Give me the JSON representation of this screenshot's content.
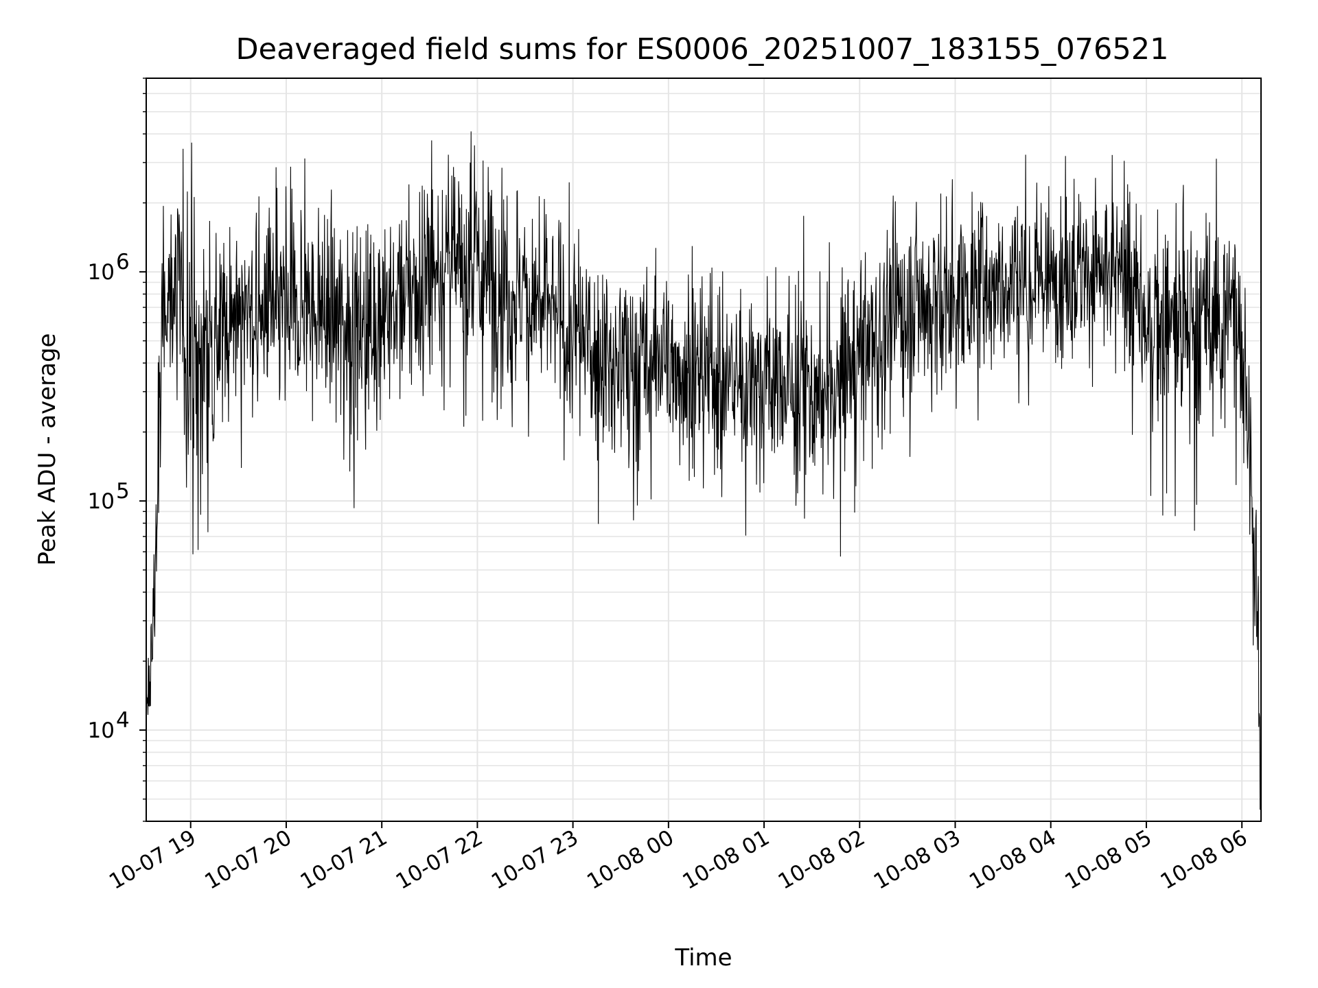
{
  "chart_data": {
    "type": "line",
    "title": "Deaveraged field sums for ES0006_20251007_183155_076521",
    "xlabel": "Time",
    "ylabel": "Peak ADU - average",
    "yscale": "log",
    "ylim": [
      4000,
      7000000
    ],
    "xlim_hours": [
      18.535,
      30.2
    ],
    "grid": true,
    "line_color": "#000000",
    "grid_color": "#e5e5e5",
    "x_ticks": [
      {
        "hour": 19,
        "label": "10-07 19"
      },
      {
        "hour": 20,
        "label": "10-07 20"
      },
      {
        "hour": 21,
        "label": "10-07 21"
      },
      {
        "hour": 22,
        "label": "10-07 22"
      },
      {
        "hour": 23,
        "label": "10-07 23"
      },
      {
        "hour": 24,
        "label": "10-08 00"
      },
      {
        "hour": 25,
        "label": "10-08 01"
      },
      {
        "hour": 26,
        "label": "10-08 02"
      },
      {
        "hour": 27,
        "label": "10-08 03"
      },
      {
        "hour": 28,
        "label": "10-08 04"
      },
      {
        "hour": 29,
        "label": "10-08 05"
      },
      {
        "hour": 30,
        "label": "10-08 06"
      }
    ],
    "y_ticks": [
      {
        "value": 10000,
        "base": "10",
        "exp": "4"
      },
      {
        "value": 100000,
        "base": "10",
        "exp": "5"
      },
      {
        "value": 1000000,
        "base": "10",
        "exp": "6"
      }
    ],
    "series": [
      {
        "name": "Peak ADU - average",
        "time_hours": [
          18.535,
          18.6,
          18.65,
          18.7,
          18.75,
          18.8,
          18.9,
          19.0,
          19.1,
          19.2,
          19.35,
          19.5,
          19.75,
          20.0,
          20.25,
          20.5,
          20.75,
          21.0,
          21.25,
          21.5,
          21.75,
          22.0,
          22.25,
          22.5,
          22.75,
          23.0,
          23.25,
          23.5,
          23.75,
          24.0,
          24.25,
          24.5,
          24.75,
          25.0,
          25.25,
          25.5,
          25.75,
          26.0,
          26.25,
          26.5,
          26.75,
          27.0,
          27.25,
          27.5,
          27.75,
          28.0,
          28.25,
          28.5,
          28.75,
          29.0,
          29.25,
          29.5,
          29.75,
          29.95,
          30.05,
          30.1,
          30.15,
          30.19
        ],
        "center_values": [
          10000,
          25000,
          100000,
          500000,
          800000,
          900000,
          700000,
          500000,
          400000,
          500000,
          600000,
          650000,
          650000,
          650000,
          700000,
          650000,
          600000,
          650000,
          800000,
          1000000,
          1100000,
          1000000,
          900000,
          800000,
          700000,
          500000,
          450000,
          400000,
          400000,
          400000,
          380000,
          350000,
          340000,
          330000,
          320000,
          300000,
          300000,
          450000,
          600000,
          700000,
          750000,
          800000,
          850000,
          900000,
          950000,
          1000000,
          1000000,
          1000000,
          950000,
          600000,
          550000,
          600000,
          700000,
          700000,
          300000,
          100000,
          40000,
          8000
        ],
        "spread_log10": [
          0.2,
          0.25,
          0.3,
          0.3,
          0.2,
          0.25,
          0.45,
          0.5,
          0.45,
          0.35,
          0.3,
          0.3,
          0.3,
          0.3,
          0.3,
          0.3,
          0.3,
          0.3,
          0.3,
          0.3,
          0.35,
          0.35,
          0.35,
          0.3,
          0.3,
          0.3,
          0.3,
          0.3,
          0.3,
          0.3,
          0.3,
          0.3,
          0.3,
          0.3,
          0.3,
          0.3,
          0.3,
          0.3,
          0.3,
          0.28,
          0.28,
          0.28,
          0.28,
          0.28,
          0.28,
          0.25,
          0.25,
          0.25,
          0.25,
          0.35,
          0.35,
          0.35,
          0.3,
          0.3,
          0.3,
          0.3,
          0.3,
          0.3
        ],
        "n_points": 2600
      }
    ]
  }
}
